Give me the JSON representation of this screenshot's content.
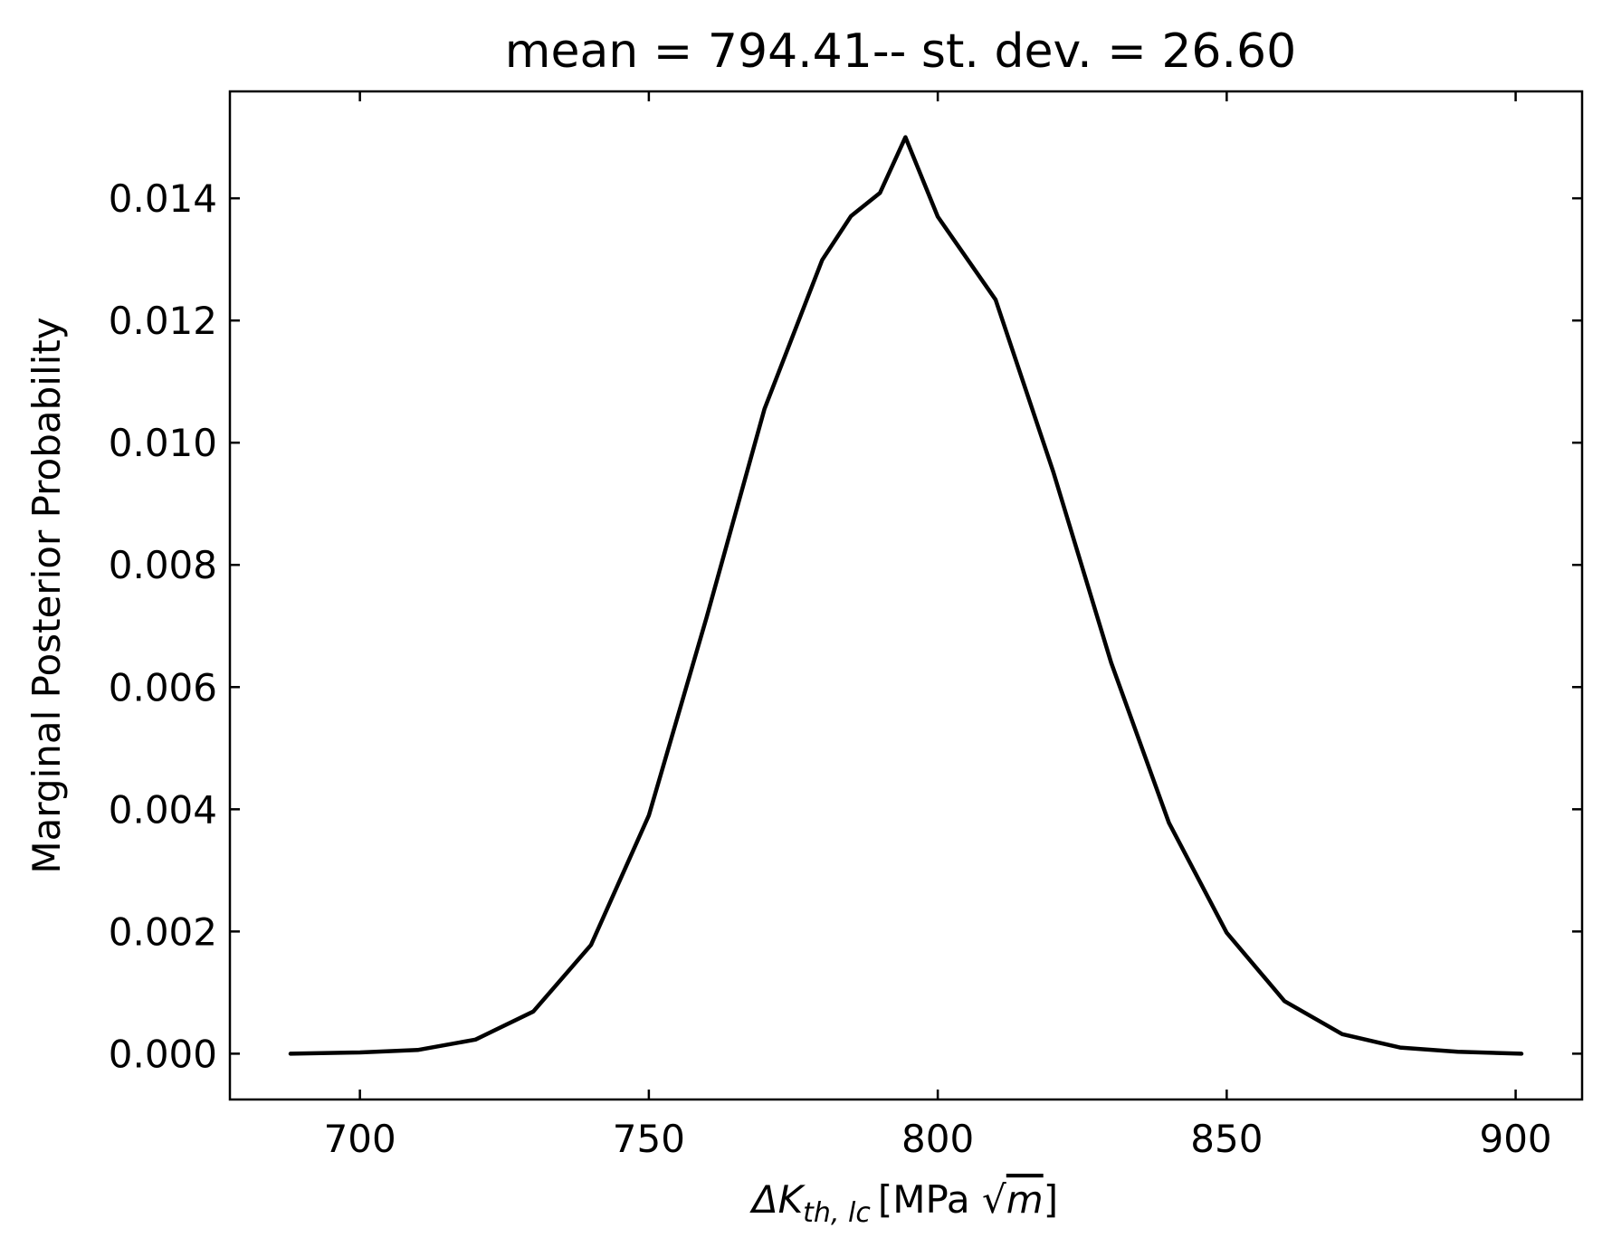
{
  "chart_data": {
    "type": "line",
    "title": "mean = 794.41-- st. dev. = 26.60",
    "xlabel": {
      "symbol": "ΔK",
      "subscript": "th, lc",
      "unit_open": "[MPa ",
      "sqrt": "√",
      "sqrt_arg": "m",
      "unit_close": "]"
    },
    "ylabel": "Marginal Posterior Probability",
    "xlim": [
      677.5,
      911.5
    ],
    "ylim": [
      -0.00075,
      0.01575
    ],
    "x_ticks": [
      700,
      750,
      800,
      850,
      900
    ],
    "x_tick_labels": [
      "700",
      "750",
      "800",
      "850",
      "900"
    ],
    "y_ticks": [
      0.0,
      0.002,
      0.004,
      0.006,
      0.008,
      0.01,
      0.012,
      0.014
    ],
    "y_tick_labels": [
      "0.000",
      "0.002",
      "0.004",
      "0.006",
      "0.008",
      "0.010",
      "0.012",
      "0.014"
    ],
    "grid": false,
    "legend": "none",
    "series": [
      {
        "color": "#000000",
        "x": [
          688,
          700,
          710,
          720,
          730,
          740,
          750,
          760,
          770,
          780,
          785,
          790,
          794.41,
          800,
          810,
          820,
          830,
          840,
          850,
          860,
          870,
          880,
          890,
          901
        ],
        "y": [
          0.0,
          2e-05,
          6e-05,
          0.00023,
          0.00069,
          0.00178,
          0.0039,
          0.00714,
          0.01055,
          0.01299,
          0.01371,
          0.01409,
          0.015,
          0.0137,
          0.01234,
          0.00952,
          0.0064,
          0.00378,
          0.00198,
          0.00086,
          0.00032,
          0.0001,
          3e-05,
          0.0
        ]
      }
    ]
  }
}
